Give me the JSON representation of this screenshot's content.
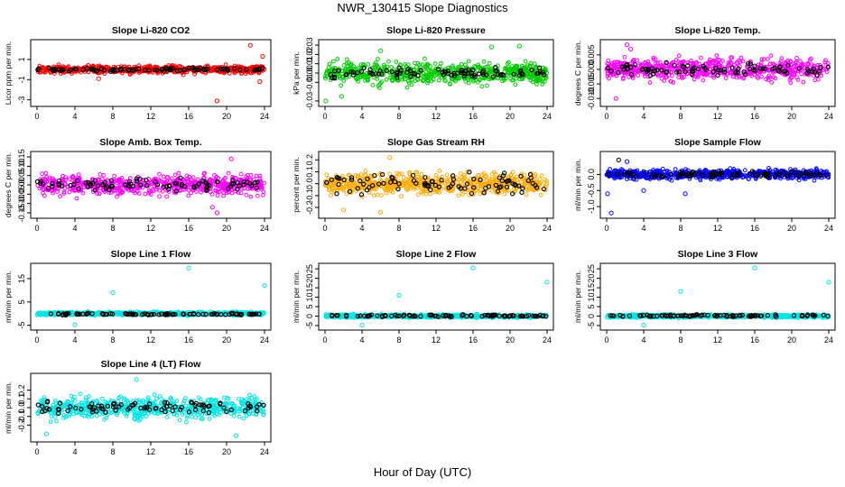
{
  "figure": {
    "title": "NWR_130415  Slope Diagnostics",
    "xlabel": "Hour of Day (UTC)"
  },
  "chart_data": [
    {
      "type": "scatter",
      "title": "Slope Li-820 CO2",
      "xlabel": "Hour of Day (UTC)",
      "ylabel": "Licor ppm per min.",
      "xlim": [
        0,
        24
      ],
      "x_ticks": [
        0,
        4,
        8,
        12,
        16,
        20,
        24
      ],
      "ylim": [
        -3.3,
        2.6
      ],
      "y_ticks": [
        -3,
        -1,
        1
      ],
      "y_tick_labels": [
        "-3",
        "-1",
        "1"
      ],
      "series": [
        {
          "color": "#ff0000",
          "center": 0.0,
          "spread": 0.35,
          "outliers": [
            [
              19,
              -3.1
            ],
            [
              22.5,
              2.4
            ],
            [
              23.5,
              -1.2
            ],
            [
              6.5,
              -0.9
            ],
            [
              23.8,
              1.3
            ]
          ]
        },
        {
          "color": "#000000",
          "center": 0.0,
          "spread": 0.15,
          "outliers": []
        }
      ]
    },
    {
      "type": "scatter",
      "title": "Slope Li-820 Pressure",
      "xlabel": "Hour of Day (UTC)",
      "ylabel": "kPa per min.",
      "xlim": [
        0,
        24
      ],
      "x_ticks": [
        0,
        4,
        8,
        12,
        16,
        20,
        24
      ],
      "ylim": [
        -0.032,
        0.032
      ],
      "y_ticks": [
        -0.03,
        -0.01,
        0.0,
        0.01,
        0.02,
        0.03
      ],
      "y_tick_labels": [
        "-0.03",
        "-0.01",
        "0.00",
        "0.01",
        "0.02",
        "0.03"
      ],
      "series": [
        {
          "color": "#00cc00",
          "center": 0.0,
          "spread": 0.011,
          "outliers": [
            [
              0.1,
              -0.03
            ],
            [
              1.8,
              -0.025
            ],
            [
              18,
              0.028
            ],
            [
              21,
              0.029
            ],
            [
              6,
              0.024
            ]
          ]
        },
        {
          "color": "#000000",
          "center": 0.0,
          "spread": 0.005,
          "outliers": []
        }
      ]
    },
    {
      "type": "scatter",
      "title": "Slope Li-820 Temp.",
      "xlabel": "Hour of Day (UTC)",
      "ylabel": "degrees C per min.",
      "xlim": [
        0,
        24
      ],
      "x_ticks": [
        0,
        4,
        8,
        12,
        16,
        20,
        24
      ],
      "ylim": [
        -0.0115,
        0.009
      ],
      "y_ticks": [
        -0.01,
        -0.005,
        0.0,
        0.005
      ],
      "y_tick_labels": [
        "-0.010",
        "-0.005",
        "0.000",
        "0.005"
      ],
      "series": [
        {
          "color": "#ff00ff",
          "center": 0.0,
          "spread": 0.0035,
          "outliers": [
            [
              2.2,
              0.0085
            ],
            [
              2.6,
              0.007
            ],
            [
              1,
              -0.01
            ]
          ]
        },
        {
          "color": "#000000",
          "center": 0.0,
          "spread": 0.0018,
          "outliers": []
        }
      ]
    },
    {
      "type": "scatter",
      "title": "Slope Amb. Box Temp.",
      "xlabel": "Hour of Day (UTC)",
      "ylabel": "degrees C per min.",
      "xlim": [
        0,
        24
      ],
      "x_ticks": [
        0,
        4,
        8,
        12,
        16,
        20,
        24
      ],
      "ylim": [
        -0.16,
        0.16
      ],
      "y_ticks": [
        -0.15,
        -0.1,
        -0.05,
        0.0,
        0.05,
        0.1,
        0.15
      ],
      "y_tick_labels": [
        "-0.15",
        "-0.10",
        "-0.05",
        "0.00",
        "0.05",
        "0.10",
        "0.15"
      ],
      "series": [
        {
          "color": "#ff00ff",
          "center": 0.0,
          "spread": 0.05,
          "outliers": [
            [
              19,
              -0.15
            ],
            [
              20.5,
              0.14
            ],
            [
              18.5,
              -0.12
            ]
          ]
        },
        {
          "color": "#000000",
          "center": 0.0,
          "spread": 0.03,
          "outliers": []
        }
      ]
    },
    {
      "type": "scatter",
      "title": "Slope Gas Stream RH",
      "xlabel": "Hour of Day (UTC)",
      "ylabel": "percent per min.",
      "xlim": [
        0,
        24
      ],
      "x_ticks": [
        0,
        4,
        8,
        12,
        16,
        20,
        24
      ],
      "ylim": [
        -0.26,
        0.24
      ],
      "y_ticks": [
        -0.2,
        -0.1,
        0.0,
        0.1,
        0.2
      ],
      "y_tick_labels": [
        "-0.2",
        "-0.1",
        "0.0",
        "0.1",
        "0.2"
      ],
      "series": [
        {
          "color": "#ffaa00",
          "center": 0.0,
          "spread": 0.08,
          "outliers": [
            [
              6,
              -0.24
            ],
            [
              7,
              0.22
            ],
            [
              2,
              -0.22
            ]
          ]
        },
        {
          "color": "#000000",
          "center": 0.0,
          "spread": 0.08,
          "outliers": []
        }
      ]
    },
    {
      "type": "scatter",
      "title": "Slope Sample Flow",
      "xlabel": "Hour of Day (UTC)",
      "ylabel": "ml/min per min.",
      "xlim": [
        0,
        24
      ],
      "x_ticks": [
        0,
        4,
        8,
        12,
        16,
        20,
        24
      ],
      "ylim": [
        -1.25,
        0.6
      ],
      "y_ticks": [
        -1.0,
        -0.5,
        0.0
      ],
      "y_tick_labels": [
        "-1.0",
        "-0.5",
        "0.0"
      ],
      "series": [
        {
          "color": "#0000ff",
          "center": 0.0,
          "spread": 0.14,
          "outliers": [
            [
              0.5,
              -1.2
            ],
            [
              0.1,
              -0.6
            ],
            [
              2.2,
              0.4
            ],
            [
              4,
              -0.5
            ],
            [
              8.5,
              -0.6
            ]
          ]
        },
        {
          "color": "#000000",
          "center": 0.0,
          "spread": 0.08,
          "outliers": [
            [
              1.3,
              0.45
            ]
          ]
        }
      ]
    },
    {
      "type": "scatter",
      "title": "Slope Line 1 Flow",
      "xlabel": "Hour of Day (UTC)",
      "ylabel": "ml/min per min.",
      "xlim": [
        0,
        24
      ],
      "x_ticks": [
        0,
        4,
        8,
        12,
        16,
        20,
        24
      ],
      "ylim": [
        -5.5,
        20
      ],
      "y_ticks": [
        -5,
        5,
        15
      ],
      "y_tick_labels": [
        "-5",
        "5",
        "15"
      ],
      "series": [
        {
          "color": "#00e5e5",
          "center": 0.0,
          "spread": 0.7,
          "outliers": [
            [
              16,
              19.5
            ],
            [
              24,
              12
            ],
            [
              8,
              9
            ],
            [
              4,
              -4.8
            ]
          ]
        },
        {
          "color": "#000000",
          "center": -0.2,
          "spread": 0.4,
          "outliers": []
        }
      ]
    },
    {
      "type": "scatter",
      "title": "Slope Line 2 Flow",
      "xlabel": "Hour of Day (UTC)",
      "ylabel": "ml/min per min.",
      "xlim": [
        0,
        24
      ],
      "x_ticks": [
        0,
        4,
        8,
        12,
        16,
        20,
        24
      ],
      "ylim": [
        -5.5,
        26
      ],
      "y_ticks": [
        -5,
        0,
        5,
        10,
        15,
        20,
        25
      ],
      "y_tick_labels": [
        "-5",
        "0",
        "5",
        "10",
        "15",
        "20",
        "25"
      ],
      "series": [
        {
          "color": "#00e5e5",
          "center": 0.0,
          "spread": 0.8,
          "outliers": [
            [
              16,
              25.5
            ],
            [
              24,
              18
            ],
            [
              8,
              11
            ],
            [
              4,
              -4.8
            ]
          ]
        },
        {
          "color": "#000000",
          "center": 0.2,
          "spread": 0.5,
          "outliers": []
        }
      ]
    },
    {
      "type": "scatter",
      "title": "Slope Line 3 Flow",
      "xlabel": "Hour of Day (UTC)",
      "ylabel": "ml/min per min.",
      "xlim": [
        0,
        24
      ],
      "x_ticks": [
        0,
        4,
        8,
        12,
        16,
        20,
        24
      ],
      "ylim": [
        -5.5,
        26
      ],
      "y_ticks": [
        -5,
        0,
        5,
        10,
        15,
        20,
        25
      ],
      "y_tick_labels": [
        "-5",
        "0",
        "5",
        "10",
        "15",
        "20",
        "25"
      ],
      "series": [
        {
          "color": "#00e5e5",
          "center": 0.0,
          "spread": 0.8,
          "outliers": [
            [
              16,
              25.5
            ],
            [
              24,
              18
            ],
            [
              8,
              13
            ],
            [
              4,
              -4.8
            ]
          ]
        },
        {
          "color": "#000000",
          "center": 0.2,
          "spread": 0.5,
          "outliers": []
        }
      ]
    },
    {
      "type": "scatter",
      "title": "Slope Line 4 (LT) Flow",
      "xlabel": "Hour of Day (UTC)",
      "ylabel": "ml/min per min.",
      "xlim": [
        0,
        24
      ],
      "x_ticks": [
        0,
        4,
        8,
        12,
        16,
        20,
        24
      ],
      "ylim": [
        -0.35,
        0.35
      ],
      "y_ticks": [
        -0.2,
        -0.1,
        0.0,
        0.1,
        0.2
      ],
      "y_tick_labels": [
        "-0.2",
        "-0.1",
        "0.0",
        "0.1",
        "0.2"
      ],
      "series": [
        {
          "color": "#00e5e5",
          "center": 0.0,
          "spread": 0.11,
          "outliers": [
            [
              10.5,
              0.32
            ],
            [
              1,
              -0.3
            ],
            [
              21,
              -0.32
            ]
          ]
        },
        {
          "color": "#000000",
          "center": 0.0,
          "spread": 0.07,
          "outliers": []
        }
      ]
    }
  ]
}
